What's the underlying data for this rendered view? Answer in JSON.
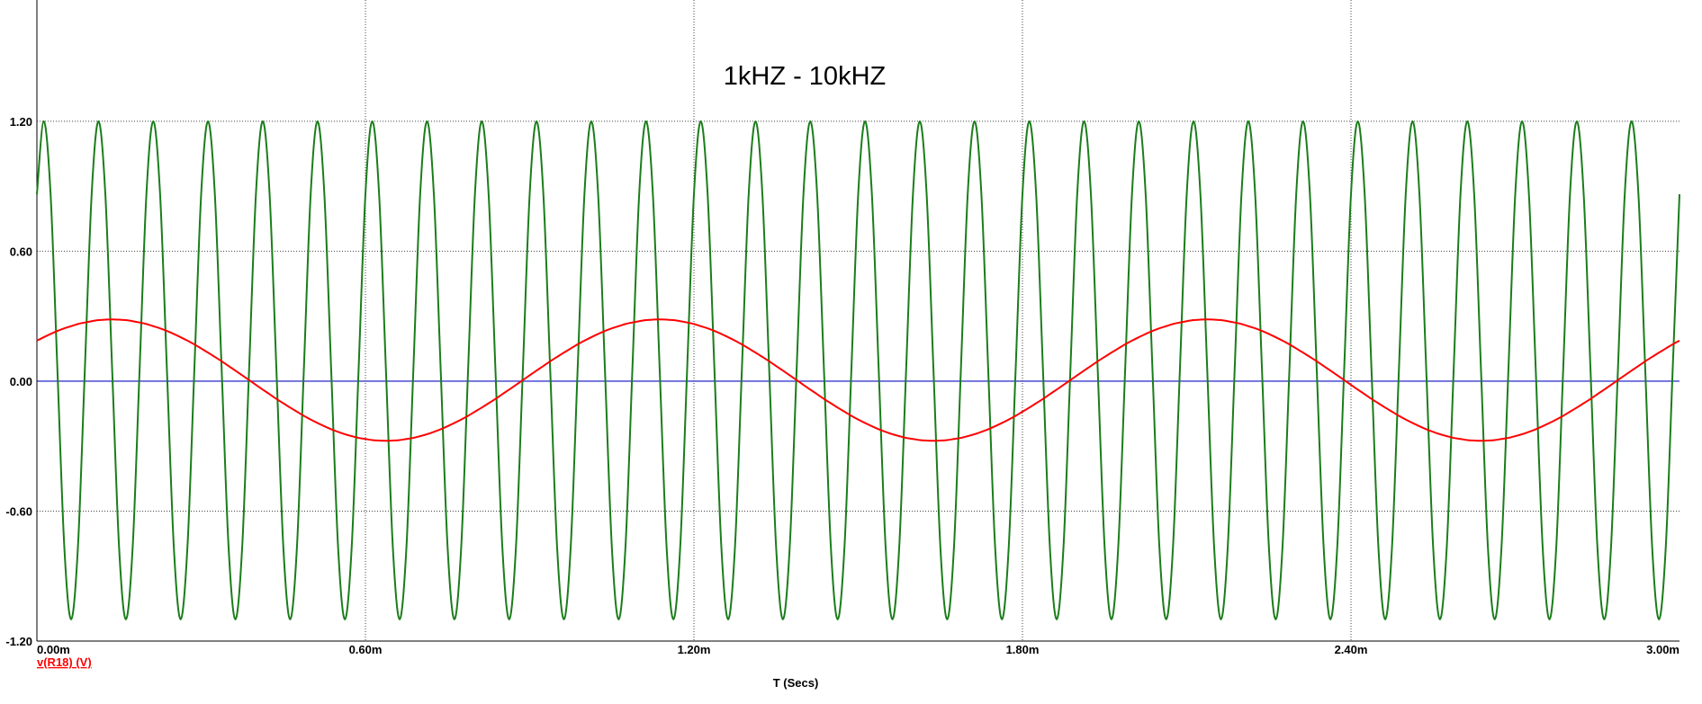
{
  "chart_data": {
    "type": "line",
    "title": "1kHZ - 10kHZ",
    "x_label": "T (Secs)",
    "xlim": [
      0,
      3
    ],
    "ylim": [
      -1.2,
      1.76
    ],
    "xticks": [
      {
        "value": 0,
        "label": "0.00m"
      },
      {
        "value": 0.6,
        "label": "0.60m"
      },
      {
        "value": 1.2,
        "label": "1.20m"
      },
      {
        "value": 1.8,
        "label": "1.80m"
      },
      {
        "value": 2.4,
        "label": "2.40m"
      },
      {
        "value": 3,
        "label": "3.00m"
      }
    ],
    "yticks": [
      {
        "value": 1.2,
        "label": "1.20"
      },
      {
        "value": 0.6,
        "label": "0.60"
      },
      {
        "value": 0,
        "label": "0.00"
      },
      {
        "value": -0.6,
        "label": "-0.60"
      },
      {
        "value": -1.2,
        "label": "-1.20"
      }
    ],
    "grid": true,
    "x": [
      0,
      0.0125,
      0.025,
      0.0375,
      0.05,
      0.0625,
      0.075,
      0.0875,
      0.1,
      0.1125,
      0.125,
      0.1375,
      0.15,
      0.1625,
      0.175,
      0.1875,
      0.2,
      0.2125,
      0.225,
      0.2375,
      0.25,
      0.2625,
      0.275,
      0.2875,
      0.3,
      0.3125,
      0.325,
      0.3375,
      0.35,
      0.3625,
      0.375,
      0.3875,
      0.4,
      0.4125,
      0.425,
      0.4375,
      0.45,
      0.4625,
      0.475,
      0.4875,
      0.5,
      0.5125,
      0.525,
      0.5375,
      0.55,
      0.5625,
      0.575,
      0.5875,
      0.6,
      0.6125,
      0.625,
      0.6375,
      0.65,
      0.6625,
      0.675,
      0.6875,
      0.7,
      0.7125,
      0.725,
      0.7375,
      0.75,
      0.7625,
      0.775,
      0.7875,
      0.8,
      0.8125,
      0.825,
      0.8375,
      0.85,
      0.8625,
      0.875,
      0.8875,
      0.9,
      0.9125,
      0.925,
      0.9375,
      0.95,
      0.9625,
      0.975,
      0.9875,
      1,
      1.0125,
      1.025,
      1.0375,
      1.05,
      1.0625,
      1.075,
      1.0875,
      1.1,
      1.1125,
      1.125,
      1.1375,
      1.15,
      1.1625,
      1.175,
      1.1875,
      1.2,
      1.2125,
      1.225,
      1.2375,
      1.25,
      1.2625,
      1.275,
      1.2875,
      1.3,
      1.3125,
      1.325,
      1.3375,
      1.35,
      1.3625,
      1.375,
      1.3875,
      1.4,
      1.4125,
      1.425,
      1.4375,
      1.45,
      1.4625,
      1.475,
      1.4875,
      1.5,
      1.5125,
      1.525,
      1.5375,
      1.55,
      1.5625,
      1.575,
      1.5875,
      1.6,
      1.6125,
      1.625,
      1.6375,
      1.65,
      1.6625,
      1.675,
      1.6875,
      1.7,
      1.7125,
      1.725,
      1.7375,
      1.75,
      1.7625,
      1.775,
      1.7875,
      1.8,
      1.8125,
      1.825,
      1.8375,
      1.85,
      1.8625,
      1.875,
      1.8875,
      1.9,
      1.9125,
      1.925,
      1.9375,
      1.95,
      1.9625,
      1.975,
      1.9875,
      2,
      2.0125,
      2.025,
      2.0375,
      2.05,
      2.0625,
      2.075,
      2.0875,
      2.1,
      2.1125,
      2.125,
      2.1375,
      2.15,
      2.1625,
      2.175,
      2.1875,
      2.2,
      2.2125,
      2.225,
      2.2375,
      2.25,
      2.2625,
      2.275,
      2.2875,
      2.3,
      2.3125,
      2.325,
      2.3375,
      2.35,
      2.3625,
      2.375,
      2.3875,
      2.4,
      2.4125,
      2.425,
      2.4375,
      2.45,
      2.4625,
      2.475,
      2.4875,
      2.5,
      2.5125,
      2.525,
      2.5375,
      2.55,
      2.5625,
      2.575,
      2.5875,
      2.6,
      2.6125,
      2.625,
      2.6375,
      2.65,
      2.6625,
      2.675,
      2.6875,
      2.7,
      2.7125,
      2.725,
      2.7375,
      2.75,
      2.7625,
      2.775,
      2.7875,
      2.8,
      2.8125,
      2.825,
      2.8375,
      2.85,
      2.8625,
      2.875,
      2.8875,
      2.9,
      2.9125,
      2.925,
      2.9375,
      2.95,
      2.9625,
      2.975,
      2.9875,
      3
    ],
    "series": [
      {
        "color": "#1b7d1b",
        "values": [
          0.863,
          1.2,
          0.863,
          0.05,
          -0.763,
          -1.1,
          -0.763,
          0.05,
          0.863,
          1.2,
          0.863,
          0.05,
          -0.763,
          -1.1,
          -0.763,
          0.05,
          0.863,
          1.2,
          0.863,
          0.05,
          -0.763,
          -1.1,
          -0.763,
          0.05,
          0.863,
          1.2,
          0.863,
          0.05,
          -0.763,
          -1.1,
          -0.763,
          0.05,
          0.863,
          1.2,
          0.863,
          0.05,
          -0.763,
          -1.1,
          -0.763,
          0.05,
          0.863,
          1.2,
          0.863,
          0.05,
          -0.763,
          -1.1,
          -0.763,
          0.05,
          0.863,
          1.2,
          0.863,
          0.05,
          -0.763,
          -1.1,
          -0.763,
          0.05,
          0.863,
          1.2,
          0.863,
          0.05,
          -0.763,
          -1.1,
          -0.763,
          0.05,
          0.863,
          1.2,
          0.863,
          0.05,
          -0.763,
          -1.1,
          -0.763,
          0.05,
          0.863,
          1.2,
          0.863,
          0.05,
          -0.763,
          -1.1,
          -0.763,
          0.05,
          0.863,
          1.2,
          0.863,
          0.05,
          -0.763,
          -1.1,
          -0.763,
          0.05,
          0.863,
          1.2,
          0.863,
          0.05,
          -0.763,
          -1.1,
          -0.763,
          0.05,
          0.863,
          1.2,
          0.863,
          0.05,
          -0.763,
          -1.1,
          -0.763,
          0.05,
          0.863,
          1.2,
          0.863,
          0.05,
          -0.763,
          -1.1,
          -0.763,
          0.05,
          0.863,
          1.2,
          0.863,
          0.05,
          -0.763,
          -1.1,
          -0.763,
          0.05,
          0.863,
          1.2,
          0.863,
          0.05,
          -0.763,
          -1.1,
          -0.763,
          0.05,
          0.863,
          1.2,
          0.863,
          0.05,
          -0.763,
          -1.1,
          -0.763,
          0.05,
          0.863,
          1.2,
          0.863,
          0.05,
          -0.763,
          -1.1,
          -0.763,
          0.05,
          0.863,
          1.2,
          0.863,
          0.05,
          -0.763,
          -1.1,
          -0.763,
          0.05,
          0.863,
          1.2,
          0.863,
          0.05,
          -0.763,
          -1.1,
          -0.763,
          0.05,
          0.863,
          1.2,
          0.863,
          0.05,
          -0.763,
          -1.1,
          -0.763,
          0.05,
          0.863,
          1.2,
          0.863,
          0.05,
          -0.763,
          -1.1,
          -0.763,
          0.05,
          0.863,
          1.2,
          0.863,
          0.05,
          -0.763,
          -1.1,
          -0.763,
          0.05,
          0.863,
          1.2,
          0.863,
          0.05,
          -0.763,
          -1.1,
          -0.763,
          0.05,
          0.863,
          1.2,
          0.863,
          0.05,
          -0.763,
          -1.1,
          -0.763,
          0.05,
          0.863,
          1.2,
          0.863,
          0.05,
          -0.763,
          -1.1,
          -0.763,
          0.05,
          0.863,
          1.2,
          0.863,
          0.05,
          -0.763,
          -1.1,
          -0.763,
          0.05,
          0.863,
          1.2,
          0.863,
          0.05,
          -0.763,
          -1.1,
          -0.763,
          0.05,
          0.863,
          1.2,
          0.863,
          0.05,
          -0.763,
          -1.1,
          -0.763,
          0.05,
          0.863,
          1.2,
          0.863,
          0.05,
          -0.763,
          -1.1,
          -0.763,
          0.05,
          0.863
        ]
      },
      {
        "name": "v(R18) (V)",
        "color": "#ff0000",
        "values": [
          0.187,
          0.203,
          0.218,
          0.232,
          0.244,
          0.254,
          0.264,
          0.271,
          0.277,
          0.282,
          0.284,
          0.285,
          0.284,
          0.282,
          0.277,
          0.271,
          0.264,
          0.254,
          0.244,
          0.232,
          0.218,
          0.203,
          0.187,
          0.17,
          0.151,
          0.132,
          0.112,
          0.092,
          0.07,
          0.049,
          0.027,
          0.005,
          -0.017,
          -0.039,
          -0.06,
          -0.082,
          -0.102,
          -0.122,
          -0.141,
          -0.16,
          -0.177,
          -0.193,
          -0.208,
          -0.222,
          -0.234,
          -0.245,
          -0.254,
          -0.262,
          -0.267,
          -0.272,
          -0.274,
          -0.275,
          -0.274,
          -0.272,
          -0.267,
          -0.262,
          -0.254,
          -0.245,
          -0.234,
          -0.222,
          -0.208,
          -0.193,
          -0.177,
          -0.16,
          -0.141,
          -0.122,
          -0.102,
          -0.082,
          -0.06,
          -0.039,
          -0.017,
          0.005,
          0.027,
          0.049,
          0.07,
          0.092,
          0.112,
          0.132,
          0.151,
          0.17,
          0.187,
          0.203,
          0.218,
          0.232,
          0.244,
          0.254,
          0.264,
          0.271,
          0.277,
          0.282,
          0.284,
          0.285,
          0.284,
          0.282,
          0.277,
          0.271,
          0.264,
          0.254,
          0.244,
          0.232,
          0.218,
          0.203,
          0.187,
          0.17,
          0.151,
          0.132,
          0.112,
          0.092,
          0.07,
          0.049,
          0.027,
          0.005,
          -0.017,
          -0.039,
          -0.06,
          -0.082,
          -0.102,
          -0.122,
          -0.141,
          -0.16,
          -0.177,
          -0.193,
          -0.208,
          -0.222,
          -0.234,
          -0.245,
          -0.254,
          -0.262,
          -0.267,
          -0.272,
          -0.274,
          -0.275,
          -0.274,
          -0.272,
          -0.267,
          -0.262,
          -0.254,
          -0.245,
          -0.234,
          -0.222,
          -0.208,
          -0.193,
          -0.177,
          -0.16,
          -0.141,
          -0.122,
          -0.102,
          -0.082,
          -0.06,
          -0.039,
          -0.017,
          0.005,
          0.027,
          0.049,
          0.07,
          0.092,
          0.112,
          0.132,
          0.151,
          0.17,
          0.187,
          0.203,
          0.218,
          0.232,
          0.244,
          0.254,
          0.264,
          0.271,
          0.277,
          0.282,
          0.284,
          0.285,
          0.284,
          0.282,
          0.277,
          0.271,
          0.264,
          0.254,
          0.244,
          0.232,
          0.218,
          0.203,
          0.187,
          0.17,
          0.151,
          0.132,
          0.112,
          0.092,
          0.07,
          0.049,
          0.027,
          0.005,
          -0.017,
          -0.039,
          -0.06,
          -0.082,
          -0.102,
          -0.122,
          -0.141,
          -0.16,
          -0.177,
          -0.193,
          -0.208,
          -0.222,
          -0.234,
          -0.245,
          -0.254,
          -0.262,
          -0.267,
          -0.272,
          -0.274,
          -0.275,
          -0.274,
          -0.272,
          -0.267,
          -0.262,
          -0.254,
          -0.245,
          -0.234,
          -0.222,
          -0.208,
          -0.193,
          -0.177,
          -0.16,
          -0.141,
          -0.122,
          -0.102,
          -0.082,
          -0.06,
          -0.039,
          -0.017,
          0.005,
          0.027,
          0.049,
          0.07,
          0.092,
          0.112,
          0.132,
          0.151,
          0.17,
          0.187
        ]
      }
    ]
  }
}
